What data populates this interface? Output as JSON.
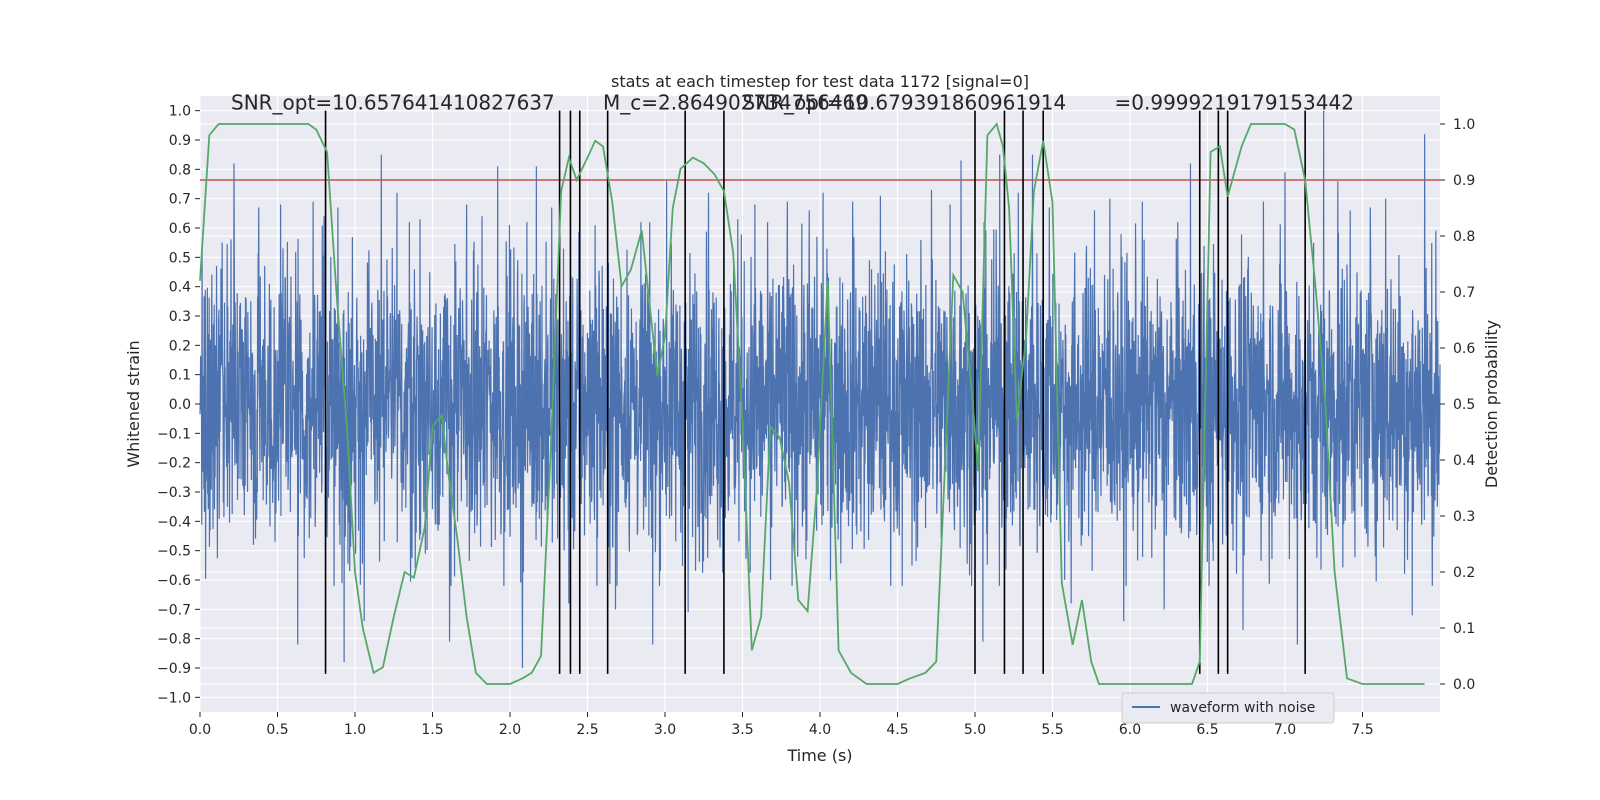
{
  "chart_data": {
    "type": "line",
    "title": "stats at each timestep for test data 1172 [signal=0]",
    "xlabel": "Time (s)",
    "ylabel": "Whitened strain",
    "ylabel_right": "Detection probability",
    "xlim": [
      0,
      8.0
    ],
    "ylim": [
      -1.05,
      1.05
    ],
    "ylim_right": [
      -0.05,
      1.05
    ],
    "xticks": [
      0.0,
      0.5,
      1.0,
      1.5,
      2.0,
      2.5,
      3.0,
      3.5,
      4.0,
      4.5,
      5.0,
      5.5,
      6.0,
      6.5,
      7.0,
      7.5
    ],
    "xtick_labels": [
      "0.0",
      "0.5",
      "1.0",
      "1.5",
      "2.0",
      "2.5",
      "3.0",
      "3.5",
      "4.0",
      "4.5",
      "5.0",
      "5.5",
      "6.0",
      "6.5",
      "7.0",
      "7.5"
    ],
    "yticks": [
      -1.0,
      -0.9,
      -0.8,
      -0.7,
      -0.6,
      -0.5,
      -0.4,
      -0.3,
      -0.2,
      -0.1,
      0.0,
      0.1,
      0.2,
      0.3,
      0.4,
      0.5,
      0.6,
      0.7,
      0.8,
      0.9,
      1.0
    ],
    "ytick_labels": [
      "−1.0",
      "−0.9",
      "−0.8",
      "−0.7",
      "−0.6",
      "−0.5",
      "−0.4",
      "−0.3",
      "−0.2",
      "−0.1",
      "0.0",
      "0.1",
      "0.2",
      "0.3",
      "0.4",
      "0.5",
      "0.6",
      "0.7",
      "0.8",
      "0.9",
      "1.0"
    ],
    "yticks_right": [
      0.0,
      0.1,
      0.2,
      0.3,
      0.4,
      0.5,
      0.6,
      0.7,
      0.8,
      0.9,
      1.0
    ],
    "ytick_labels_right": [
      "0.0",
      "0.1",
      "0.2",
      "0.3",
      "0.4",
      "0.5",
      "0.6",
      "0.7",
      "0.8",
      "0.9",
      "1.0"
    ],
    "grid": true,
    "legend": {
      "placement": "lower-right",
      "entries": [
        "waveform with noise"
      ]
    },
    "annotations": [
      {
        "text": "SNR_opt=10.657641410827637",
        "x": 0.2
      },
      {
        "text": "M_c=2.864902734756469",
        "x": 2.6
      },
      {
        "text": "SNR_opt=10.679391860961914",
        "x": 3.5
      },
      {
        "text": "=0.9999219179153442",
        "x": 5.9
      }
    ],
    "threshold_right": 0.9,
    "threshold_color": "#c44e52",
    "vertical_lines_x": [
      0.81,
      2.32,
      2.39,
      2.45,
      2.63,
      3.13,
      3.38,
      5.0,
      5.19,
      5.31,
      5.44,
      6.45,
      6.57,
      6.63,
      7.13
    ],
    "series": [
      {
        "name": "waveform with noise",
        "color": "#4c72b0",
        "axis": "left",
        "note_style": "dense noise, bulk within ±0.45",
        "spikes": [
          [
            0.22,
            0.82
          ],
          [
            0.38,
            0.67
          ],
          [
            0.52,
            0.68
          ],
          [
            0.63,
            -0.82
          ],
          [
            0.73,
            0.69
          ],
          [
            0.8,
            0.64
          ],
          [
            0.89,
            0.67
          ],
          [
            0.93,
            -0.88
          ],
          [
            1.06,
            -0.74
          ],
          [
            1.17,
            0.85
          ],
          [
            1.27,
            0.72
          ],
          [
            1.35,
            0.62
          ],
          [
            1.42,
            0.63
          ],
          [
            1.61,
            -0.81
          ],
          [
            1.72,
            0.68
          ],
          [
            1.82,
            0.64
          ],
          [
            1.92,
            0.81
          ],
          [
            2.08,
            -0.9
          ],
          [
            2.17,
            0.81
          ],
          [
            2.27,
            0.67
          ],
          [
            2.38,
            -0.68
          ],
          [
            2.55,
            0.61
          ],
          [
            2.68,
            -0.7
          ],
          [
            2.92,
            -0.82
          ],
          [
            3.01,
            0.76
          ],
          [
            3.15,
            -0.71
          ],
          [
            3.28,
            0.72
          ],
          [
            3.47,
            0.63
          ],
          [
            3.58,
            0.68
          ],
          [
            3.68,
            -0.6
          ],
          [
            3.79,
            0.69
          ],
          [
            3.93,
            0.66
          ],
          [
            4.02,
            0.72
          ],
          [
            4.21,
            0.69
          ],
          [
            4.39,
            0.71
          ],
          [
            4.53,
            -0.62
          ],
          [
            4.72,
            0.73
          ],
          [
            4.84,
            0.68
          ],
          [
            4.91,
            0.83
          ],
          [
            5.05,
            -0.81
          ],
          [
            5.16,
            0.85
          ],
          [
            5.28,
            0.72
          ],
          [
            5.37,
            0.85
          ],
          [
            5.48,
            0.67
          ],
          [
            5.62,
            -0.68
          ],
          [
            5.77,
            0.66
          ],
          [
            5.87,
            0.7
          ],
          [
            5.96,
            -0.74
          ],
          [
            6.08,
            0.69
          ],
          [
            6.22,
            -0.7
          ],
          [
            6.39,
            0.82
          ],
          [
            6.51,
            -0.62
          ],
          [
            6.73,
            -0.77
          ],
          [
            6.86,
            0.69
          ],
          [
            7.0,
            0.79
          ],
          [
            7.08,
            -0.82
          ],
          [
            7.25,
            1.0
          ],
          [
            7.34,
            0.76
          ],
          [
            7.42,
            0.66
          ],
          [
            7.55,
            0.67
          ],
          [
            7.65,
            0.7
          ],
          [
            7.82,
            -0.72
          ],
          [
            7.9,
            0.92
          ]
        ]
      },
      {
        "name": "",
        "color": "#55a868",
        "axis": "right",
        "x": [
          0.0,
          0.06,
          0.12,
          0.2,
          0.3,
          0.5,
          0.7,
          0.75,
          0.82,
          0.88,
          0.95,
          1.0,
          1.05,
          1.12,
          1.18,
          1.25,
          1.32,
          1.38,
          1.45,
          1.5,
          1.56,
          1.6,
          1.66,
          1.72,
          1.78,
          1.85,
          1.92,
          2.0,
          2.08,
          2.14,
          2.2,
          2.26,
          2.33,
          2.38,
          2.43,
          2.5,
          2.55,
          2.6,
          2.66,
          2.72,
          2.78,
          2.85,
          2.9,
          2.95,
          3.0,
          3.05,
          3.1,
          3.18,
          3.25,
          3.32,
          3.38,
          3.44,
          3.5,
          3.56,
          3.62,
          3.68,
          3.74,
          3.8,
          3.86,
          3.92,
          3.98,
          4.05,
          4.12,
          4.2,
          4.3,
          4.42,
          4.5,
          4.58,
          4.68,
          4.75,
          4.8,
          4.86,
          4.92,
          4.98,
          5.02,
          5.08,
          5.14,
          5.18,
          5.22,
          5.27,
          5.33,
          5.38,
          5.44,
          5.5,
          5.56,
          5.63,
          5.69,
          5.75,
          5.8,
          5.9,
          6.0,
          6.2,
          6.3,
          6.4,
          6.45,
          6.52,
          6.58,
          6.63,
          6.72,
          6.78,
          6.9,
          7.0,
          7.06,
          7.13,
          7.2,
          7.26,
          7.32,
          7.4,
          7.5,
          7.6,
          7.7,
          7.8,
          7.9
        ],
        "y": [
          0.72,
          0.98,
          1.0,
          1.0,
          1.0,
          1.0,
          1.0,
          0.99,
          0.95,
          0.7,
          0.45,
          0.2,
          0.1,
          0.02,
          0.03,
          0.12,
          0.2,
          0.19,
          0.28,
          0.46,
          0.48,
          0.38,
          0.26,
          0.12,
          0.02,
          0.0,
          0.0,
          0.0,
          0.01,
          0.02,
          0.05,
          0.4,
          0.88,
          0.94,
          0.9,
          0.94,
          0.97,
          0.96,
          0.86,
          0.71,
          0.74,
          0.81,
          0.68,
          0.55,
          0.62,
          0.85,
          0.92,
          0.94,
          0.93,
          0.91,
          0.88,
          0.77,
          0.47,
          0.06,
          0.12,
          0.46,
          0.44,
          0.36,
          0.15,
          0.13,
          0.35,
          0.72,
          0.06,
          0.02,
          0.0,
          0.0,
          0.0,
          0.01,
          0.02,
          0.04,
          0.35,
          0.73,
          0.7,
          0.52,
          0.38,
          0.98,
          1.0,
          0.96,
          0.85,
          0.47,
          0.62,
          0.88,
          0.97,
          0.86,
          0.18,
          0.07,
          0.15,
          0.04,
          0.0,
          0.0,
          0.0,
          0.0,
          0.0,
          0.0,
          0.04,
          0.95,
          0.96,
          0.87,
          0.96,
          1.0,
          1.0,
          1.0,
          0.99,
          0.9,
          0.7,
          0.5,
          0.2,
          0.01,
          0.0,
          0.0,
          0.0,
          0.0,
          0.0
        ]
      }
    ]
  }
}
